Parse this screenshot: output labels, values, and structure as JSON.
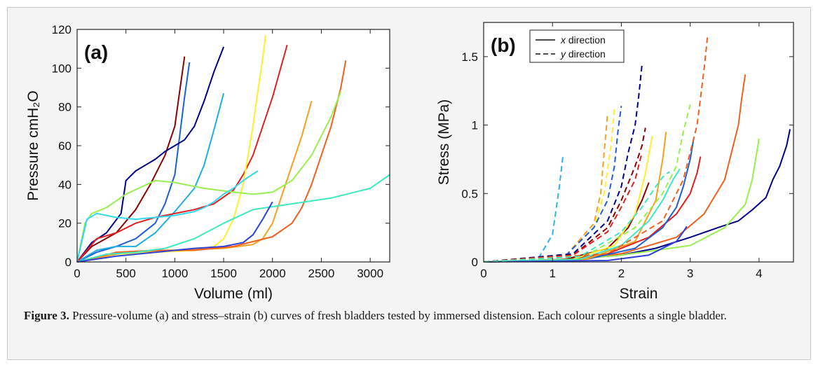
{
  "caption": {
    "label": "Figure 3.",
    "text": " Pressure-volume (a) and stress–strain (b) curves of fresh bladders tested by immersed distension. Each colour represents a single bladder."
  },
  "chart_data": [
    {
      "type": "line",
      "panel_label": "(a)",
      "xlabel": "Volume (ml)",
      "ylabel": "Pressure cmH₂O",
      "xlim": [
        0,
        3200
      ],
      "ylim": [
        0,
        120
      ],
      "xticks": [
        0,
        500,
        1000,
        1500,
        2000,
        2500,
        3000
      ],
      "yticks": [
        0,
        20,
        40,
        60,
        80,
        100,
        120
      ],
      "series": [
        {
          "color": "#8b0000",
          "x": [
            0,
            150,
            400,
            600,
            750,
            900,
            1000,
            1050,
            1100
          ],
          "y": [
            0,
            8,
            15,
            27,
            40,
            55,
            70,
            88,
            106
          ]
        },
        {
          "color": "#1e5fd8",
          "x": [
            0,
            200,
            400,
            600,
            800,
            900,
            1000,
            1050,
            1100,
            1150
          ],
          "y": [
            0,
            5,
            8,
            12,
            20,
            30,
            45,
            65,
            85,
            103
          ]
        },
        {
          "color": "#00008b",
          "x": [
            0,
            150,
            300,
            450,
            500,
            600,
            700,
            800,
            900,
            1000,
            1100,
            1200,
            1300,
            1400,
            1500
          ],
          "y": [
            0,
            10,
            15,
            25,
            42,
            47,
            50,
            53,
            57,
            60,
            63,
            70,
            83,
            98,
            111
          ]
        },
        {
          "color": "#1eaee6",
          "x": [
            0,
            200,
            400,
            600,
            800,
            1000,
            1200,
            1300,
            1400,
            1500
          ],
          "y": [
            0,
            6,
            8,
            8,
            15,
            26,
            38,
            50,
            68,
            87
          ]
        },
        {
          "color": "#e02020",
          "x": [
            0,
            200,
            400,
            600,
            800,
            1000,
            1200,
            1400,
            1600,
            1700,
            1800,
            1900,
            2000,
            2100,
            2150
          ],
          "y": [
            0,
            12,
            15,
            20,
            23,
            25,
            27,
            30,
            37,
            45,
            55,
            70,
            85,
            103,
            112
          ]
        },
        {
          "color": "#ffef2b",
          "x": [
            0,
            400,
            800,
            1200,
            1400,
            1500,
            1600,
            1700,
            1750,
            1800,
            1850,
            1900,
            1930
          ],
          "y": [
            0,
            4,
            5,
            6,
            8,
            12,
            22,
            40,
            55,
            70,
            88,
            105,
            117
          ]
        },
        {
          "color": "#f4a020",
          "x": [
            0,
            500,
            1000,
            1500,
            1800,
            1900,
            2000,
            2100,
            2200,
            2300,
            2400
          ],
          "y": [
            0,
            5,
            6,
            7,
            9,
            12,
            20,
            35,
            50,
            65,
            83
          ]
        },
        {
          "color": "#f06020",
          "x": [
            0,
            400,
            800,
            1200,
            1600,
            2000,
            2200,
            2300,
            2400,
            2500,
            2600,
            2700,
            2750
          ],
          "y": [
            0,
            5,
            6,
            6,
            8,
            13,
            20,
            28,
            40,
            55,
            70,
            90,
            104
          ]
        },
        {
          "color": "#98f050",
          "x": [
            0,
            80,
            150,
            300,
            500,
            800,
            1000,
            1300,
            1600,
            1800,
            2000,
            2200,
            2400,
            2600,
            2700
          ],
          "y": [
            0,
            20,
            25,
            28,
            35,
            42,
            41,
            38,
            36,
            35,
            36,
            42,
            55,
            75,
            88
          ]
        },
        {
          "color": "#40e8c0",
          "x": [
            0,
            300,
            600,
            900,
            1200,
            1500,
            1800,
            2200,
            2600,
            3000,
            3200
          ],
          "y": [
            0,
            4,
            5,
            7,
            12,
            20,
            27,
            30,
            33,
            38,
            45
          ]
        },
        {
          "color": "#30d8f0",
          "x": [
            0,
            100,
            200,
            400,
            600,
            800,
            1000,
            1200,
            1300,
            1400,
            1500,
            1600,
            1700,
            1850
          ],
          "y": [
            0,
            22,
            25,
            23,
            22,
            23,
            24,
            26,
            28,
            31,
            35,
            38,
            42,
            47
          ]
        },
        {
          "color": "#3040d8",
          "x": [
            0,
            400,
            800,
            1200,
            1500,
            1700,
            1800,
            1900,
            2000
          ],
          "y": [
            0,
            3,
            5,
            7,
            8,
            10,
            14,
            22,
            31
          ]
        }
      ]
    },
    {
      "type": "line",
      "panel_label": "(b)",
      "xlabel": "Strain",
      "ylabel": "Stress (MPa)",
      "xlim": [
        0,
        4.5
      ],
      "ylim": [
        0,
        1.75
      ],
      "xticks": [
        0,
        1,
        2,
        3,
        4
      ],
      "yticks": [
        0,
        0.5,
        1,
        1.5
      ],
      "legend": [
        {
          "label": "x direction",
          "dash": "solid"
        },
        {
          "label": "y direction",
          "dash": "dashed"
        }
      ],
      "series": [
        {
          "color": "#00008b",
          "dash": "solid",
          "x": [
            0,
            1,
            2,
            2.5,
            3,
            3.4,
            3.7,
            3.9,
            4.1,
            4.2,
            4.3,
            4.4,
            4.45
          ],
          "y": [
            0,
            0.01,
            0.05,
            0.1,
            0.18,
            0.25,
            0.3,
            0.38,
            0.47,
            0.6,
            0.7,
            0.85,
            0.97
          ]
        },
        {
          "color": "#98f050",
          "dash": "solid",
          "x": [
            0,
            1,
            2,
            3,
            3.5,
            3.8,
            3.9,
            4.0
          ],
          "y": [
            0,
            0.01,
            0.05,
            0.12,
            0.25,
            0.42,
            0.6,
            0.9
          ]
        },
        {
          "color": "#f06020",
          "dash": "solid",
          "x": [
            0,
            1,
            2,
            2.8,
            3.2,
            3.5,
            3.6,
            3.7,
            3.75,
            3.8
          ],
          "y": [
            0,
            0.01,
            0.06,
            0.18,
            0.35,
            0.6,
            0.8,
            1.0,
            1.2,
            1.37
          ]
        },
        {
          "color": "#e02020",
          "dash": "solid",
          "x": [
            0,
            1,
            1.8,
            2.4,
            2.8,
            3.0,
            3.1,
            3.15
          ],
          "y": [
            0,
            0.01,
            0.06,
            0.18,
            0.35,
            0.5,
            0.65,
            0.77
          ]
        },
        {
          "color": "#1e5fd8",
          "dash": "solid",
          "x": [
            0,
            1.5,
            2.2,
            2.6,
            2.8,
            2.9,
            3.0,
            3.05
          ],
          "y": [
            0,
            0.02,
            0.1,
            0.25,
            0.4,
            0.55,
            0.75,
            0.9
          ]
        },
        {
          "color": "#8b0000",
          "dash": "solid",
          "x": [
            0,
            1.2,
            1.8,
            2.1,
            2.3,
            2.4
          ],
          "y": [
            0,
            0.02,
            0.1,
            0.25,
            0.45,
            0.58
          ]
        },
        {
          "color": "#ffef2b",
          "dash": "solid",
          "x": [
            0,
            1.3,
            1.9,
            2.2,
            2.35,
            2.45
          ],
          "y": [
            0,
            0.02,
            0.12,
            0.35,
            0.65,
            0.92
          ]
        },
        {
          "color": "#f4a020",
          "dash": "solid",
          "x": [
            0,
            1.5,
            2.2,
            2.5,
            2.6,
            2.65
          ],
          "y": [
            0,
            0.02,
            0.15,
            0.45,
            0.75,
            0.95
          ]
        },
        {
          "color": "#40e8c0",
          "dash": "solid",
          "x": [
            0,
            1.4,
            2.0,
            2.4,
            2.6,
            2.75,
            2.85
          ],
          "y": [
            0,
            0.02,
            0.12,
            0.3,
            0.45,
            0.6,
            0.68
          ]
        },
        {
          "color": "#3040d8",
          "dash": "solid",
          "x": [
            0,
            1.8,
            2.4,
            2.8,
            2.9,
            2.95
          ],
          "y": [
            0,
            0.01,
            0.05,
            0.15,
            0.22,
            0.26
          ]
        },
        {
          "color": "#30b0e6",
          "dash": "dashed",
          "x": [
            0,
            0.8,
            1.0,
            1.1,
            1.15
          ],
          "y": [
            0,
            0.03,
            0.2,
            0.55,
            0.77
          ]
        },
        {
          "color": "#ffef2b",
          "dash": "dashed",
          "x": [
            0,
            1.2,
            1.6,
            1.75,
            1.85,
            1.9
          ],
          "y": [
            0,
            0.05,
            0.25,
            0.5,
            0.85,
            1.13
          ]
        },
        {
          "color": "#f4a020",
          "dash": "dashed",
          "x": [
            0,
            1.2,
            1.6,
            1.7,
            1.75,
            1.8
          ],
          "y": [
            0,
            0.05,
            0.28,
            0.5,
            0.8,
            1.08
          ]
        },
        {
          "color": "#1e5fd8",
          "dash": "dashed",
          "x": [
            0,
            1.2,
            1.6,
            1.8,
            1.9,
            1.95,
            2.0
          ],
          "y": [
            0,
            0.05,
            0.25,
            0.45,
            0.7,
            0.95,
            1.14
          ]
        },
        {
          "color": "#00008b",
          "dash": "dashed",
          "x": [
            0,
            1.3,
            1.8,
            2.0,
            2.1,
            2.2,
            2.25,
            2.3
          ],
          "y": [
            0,
            0.06,
            0.3,
            0.55,
            0.8,
            1.0,
            1.2,
            1.44
          ]
        },
        {
          "color": "#8b0000",
          "dash": "dashed",
          "x": [
            0,
            1.3,
            1.8,
            2.0,
            2.2,
            2.3,
            2.35
          ],
          "y": [
            0,
            0.05,
            0.25,
            0.45,
            0.7,
            0.85,
            0.98
          ]
        },
        {
          "color": "#e02020",
          "dash": "dashed",
          "x": [
            0,
            1.3,
            1.8,
            2.0,
            2.2,
            2.3
          ],
          "y": [
            0,
            0.05,
            0.22,
            0.4,
            0.6,
            0.8
          ]
        },
        {
          "color": "#98f050",
          "dash": "dashed",
          "x": [
            0,
            1.5,
            2.2,
            2.6,
            2.8,
            2.9,
            3.0
          ],
          "y": [
            0,
            0.05,
            0.25,
            0.5,
            0.7,
            0.95,
            1.15
          ]
        },
        {
          "color": "#f06020",
          "dash": "dashed",
          "x": [
            0,
            1.8,
            2.6,
            2.9,
            3.1,
            3.2,
            3.25
          ],
          "y": [
            0,
            0.06,
            0.3,
            0.6,
            1.0,
            1.4,
            1.64
          ]
        },
        {
          "color": "#40e8c0",
          "dash": "dashed",
          "x": [
            0,
            1.4,
            2.0,
            2.3,
            2.5,
            2.6,
            2.7
          ],
          "y": [
            0,
            0.04,
            0.22,
            0.4,
            0.55,
            0.62,
            0.66
          ]
        }
      ]
    }
  ]
}
